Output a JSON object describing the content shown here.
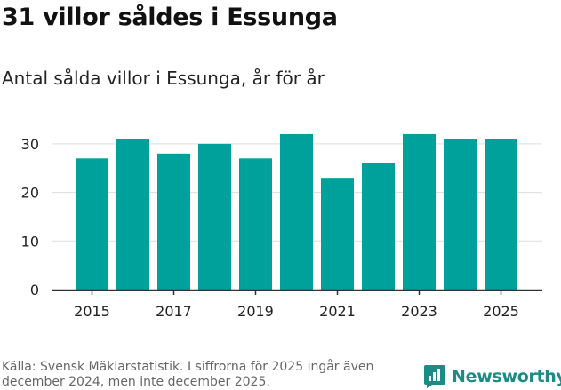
{
  "header": {
    "title": "31 villor såldes i Essunga",
    "subtitle": "Antal sålda villor i Essunga, år för år"
  },
  "footer": {
    "source": "Källa: Svensk Mäklarstatistik. I siffrorna för 2025 ingår även december 2024, men inte december 2025.",
    "brand": "Newsworthy"
  },
  "colors": {
    "bar": "#00a19a",
    "grid": "#dddddd",
    "axis": "#333333",
    "tick_text": "#222222",
    "brand": "#1a8c84"
  },
  "chart_data": {
    "type": "bar",
    "title": "31 villor såldes i Essunga",
    "subtitle": "Antal sålda villor i Essunga, år för år",
    "xlabel": "",
    "ylabel": "",
    "categories": [
      "2015",
      "2016",
      "2017",
      "2018",
      "2019",
      "2020",
      "2021",
      "2022",
      "2023",
      "2024",
      "2025"
    ],
    "values": [
      27,
      31,
      28,
      30,
      27,
      32,
      23,
      26,
      32,
      31,
      31
    ],
    "x_tick_labels": [
      "2015",
      "2017",
      "2019",
      "2021",
      "2023",
      "2025"
    ],
    "y_ticks": [
      0,
      10,
      20,
      30
    ],
    "ylim": [
      0,
      34
    ],
    "grid": true,
    "legend": "none"
  }
}
